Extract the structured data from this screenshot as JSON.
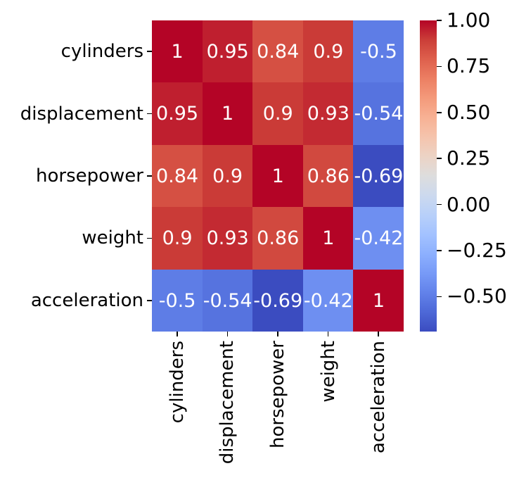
{
  "figure": {
    "background": "#ffffff",
    "text_color": "#000000",
    "title": ""
  },
  "chart_data": {
    "type": "heatmap",
    "title": "",
    "xlabel": "",
    "ylabel": "",
    "rows": [
      "cylinders",
      "displacement",
      "horsepower",
      "weight",
      "acceleration"
    ],
    "columns": [
      "cylinders",
      "displacement",
      "horsepower",
      "weight",
      "acceleration"
    ],
    "matrix": [
      [
        1.0,
        0.95,
        0.84,
        0.9,
        -0.5
      ],
      [
        0.95,
        1.0,
        0.9,
        0.93,
        -0.54
      ],
      [
        0.84,
        0.9,
        1.0,
        0.86,
        -0.69
      ],
      [
        0.9,
        0.93,
        0.86,
        1.0,
        -0.42
      ],
      [
        -0.5,
        -0.54,
        -0.69,
        -0.42,
        1.0
      ]
    ],
    "cell_labels": [
      [
        "1",
        "0.95",
        "0.84",
        "0.9",
        "-0.5"
      ],
      [
        "0.95",
        "1",
        "0.9",
        "0.93",
        "-0.54"
      ],
      [
        "0.84",
        "0.9",
        "1",
        "0.86",
        "-0.69"
      ],
      [
        "0.9",
        "0.93",
        "0.86",
        "1",
        "-0.42"
      ],
      [
        "-0.5",
        "-0.54",
        "-0.69",
        "-0.42",
        "1"
      ]
    ],
    "vmin": -0.69,
    "vmax": 1.0,
    "annotation_color": "#ffffff",
    "grid": false,
    "colormap": {
      "name": "coolwarm",
      "stops": [
        "#3B4CC0",
        "#4D68D7",
        "#6282EA",
        "#779AF7",
        "#8DB0FE",
        "#A3C2FF",
        "#B8D0F9",
        "#CCD9EE",
        "#DDDDDD",
        "#ECD3C5",
        "#F5C4AD",
        "#F7B194",
        "#F49A7B",
        "#EC7F63",
        "#DE604D",
        "#CB3E38",
        "#B40426"
      ]
    },
    "colorbar": {
      "position": "right",
      "ticks": [
        {
          "value": 1.0,
          "label": "1.00"
        },
        {
          "value": 0.75,
          "label": "0.75"
        },
        {
          "value": 0.5,
          "label": "0.50"
        },
        {
          "value": 0.25,
          "label": "0.25"
        },
        {
          "value": 0.0,
          "label": "0.00"
        },
        {
          "value": -0.25,
          "label": "−0.25"
        },
        {
          "value": -0.5,
          "label": "−0.50"
        }
      ]
    }
  }
}
